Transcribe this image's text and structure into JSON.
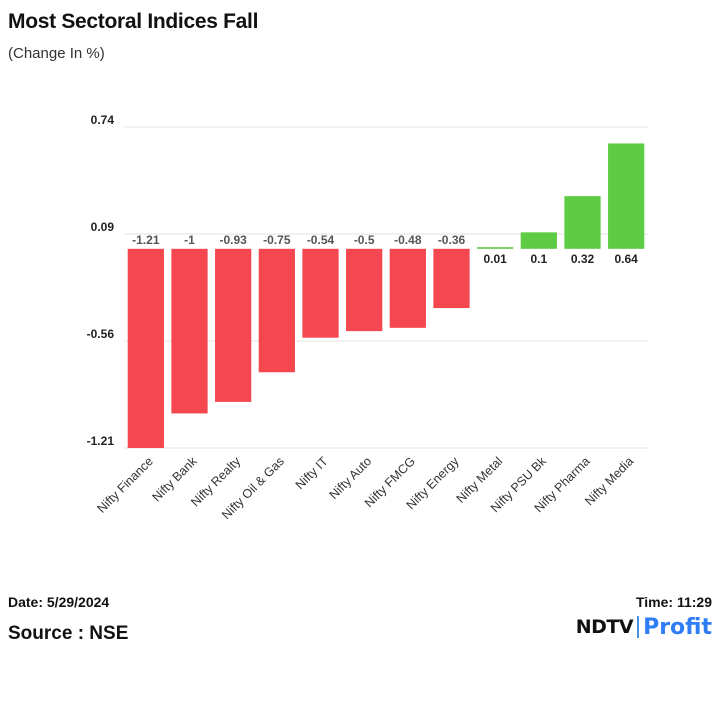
{
  "title": "Most Sectoral Indices Fall",
  "subtitle": "(Change In %)",
  "footer": {
    "date": "Date: 5/29/2024",
    "source": "Source : NSE",
    "time": "Time: 11:29"
  },
  "logo": {
    "brand": "NDTV",
    "product": "Profit"
  },
  "colors": {
    "negative": "#f5474f",
    "positive": "#5ecb44",
    "grid": "#e3e3e3",
    "logo_accent": "#2e7cf6"
  },
  "chart_data": {
    "type": "bar",
    "title": "Most Sectoral Indices Fall",
    "subtitle": "(Change In %)",
    "xlabel": "",
    "ylabel": "",
    "ylim": [
      -1.21,
      0.74
    ],
    "yticks": [
      0.74,
      0.09,
      -0.56,
      -1.21
    ],
    "ytick_labels": [
      "0.74",
      "0.09",
      "-0.56",
      "-1.21"
    ],
    "grid": true,
    "categories": [
      "Nifty Finance",
      "Nifty Bank",
      "Nifty Realty",
      "Nifty Oil & Gas",
      "Nifty IT",
      "Nifty Auto",
      "Nifty FMCG",
      "Nifty Energy",
      "Nifty Metal",
      "Nifty PSU Bk",
      "Nifty Pharma",
      "Nifty Media"
    ],
    "values": [
      -1.21,
      -1,
      -0.93,
      -0.75,
      -0.54,
      -0.5,
      -0.48,
      -0.36,
      0.01,
      0.1,
      0.32,
      0.64
    ],
    "value_labels": [
      "-1.21",
      "-1",
      "-0.93",
      "-0.75",
      "-0.54",
      "-0.5",
      "-0.48",
      "-0.36",
      "0.01",
      "0.1",
      "0.32",
      "0.64"
    ]
  }
}
